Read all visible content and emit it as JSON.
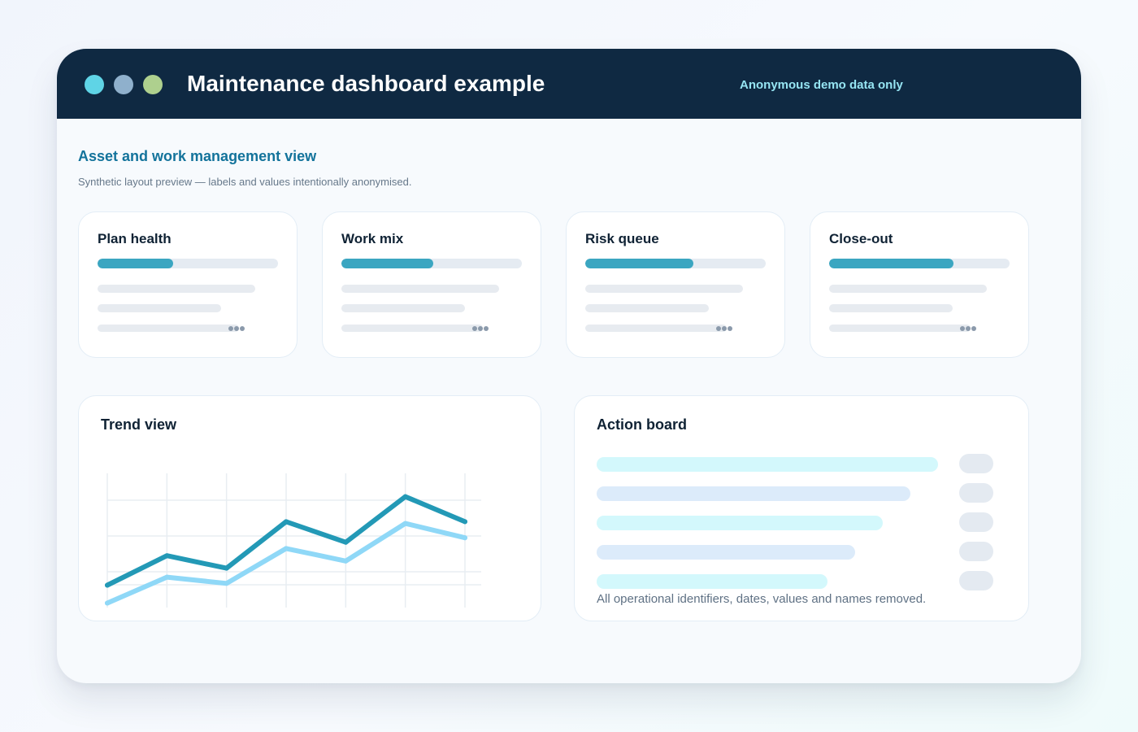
{
  "window": {
    "title": "Maintenance dashboard example",
    "badge": "Anonymous demo data only",
    "controls": [
      "close",
      "minimize",
      "zoom"
    ]
  },
  "section": {
    "title": "Asset and work management view",
    "subtitle": "Synthetic layout preview — labels and values intentionally anonymised."
  },
  "metric_cards": [
    {
      "title": "Plan health",
      "progress": 0.42
    },
    {
      "title": "Work mix",
      "progress": 0.51
    },
    {
      "title": "Risk queue",
      "progress": 0.6
    },
    {
      "title": "Close-out",
      "progress": 0.69
    }
  ],
  "trend": {
    "title": "Trend view"
  },
  "action_board": {
    "title": "Action board",
    "note": "All operational identifiers, dates, values and names removed.",
    "rows": 5
  },
  "colors": {
    "titlebar": "#0f2942",
    "accent_title": "#13739b",
    "progress_fill": "#3ba6c1",
    "line_primary": "#2399b6",
    "line_secondary": "#8fd8f7",
    "action_bar_cyan": "#d3f8fc",
    "action_bar_blue": "#dcebfa",
    "dot_1": "#5fd4e6",
    "dot_2": "#8fb0cc",
    "dot_3": "#aed08e"
  },
  "chart_data": {
    "type": "line",
    "x": [
      1,
      2,
      3,
      4,
      5,
      6,
      7
    ],
    "series": [
      {
        "values": [
          2.5,
          5.8,
          4.4,
          9.6,
          7.3,
          12.4,
          9.6
        ]
      },
      {
        "values": [
          0.5,
          3.4,
          2.7,
          6.6,
          5.2,
          9.4,
          7.8
        ]
      }
    ],
    "xlim": [
      1,
      7
    ],
    "ylim": [
      0,
      15
    ],
    "grid": true,
    "legend": "none",
    "title": "Trend view"
  }
}
